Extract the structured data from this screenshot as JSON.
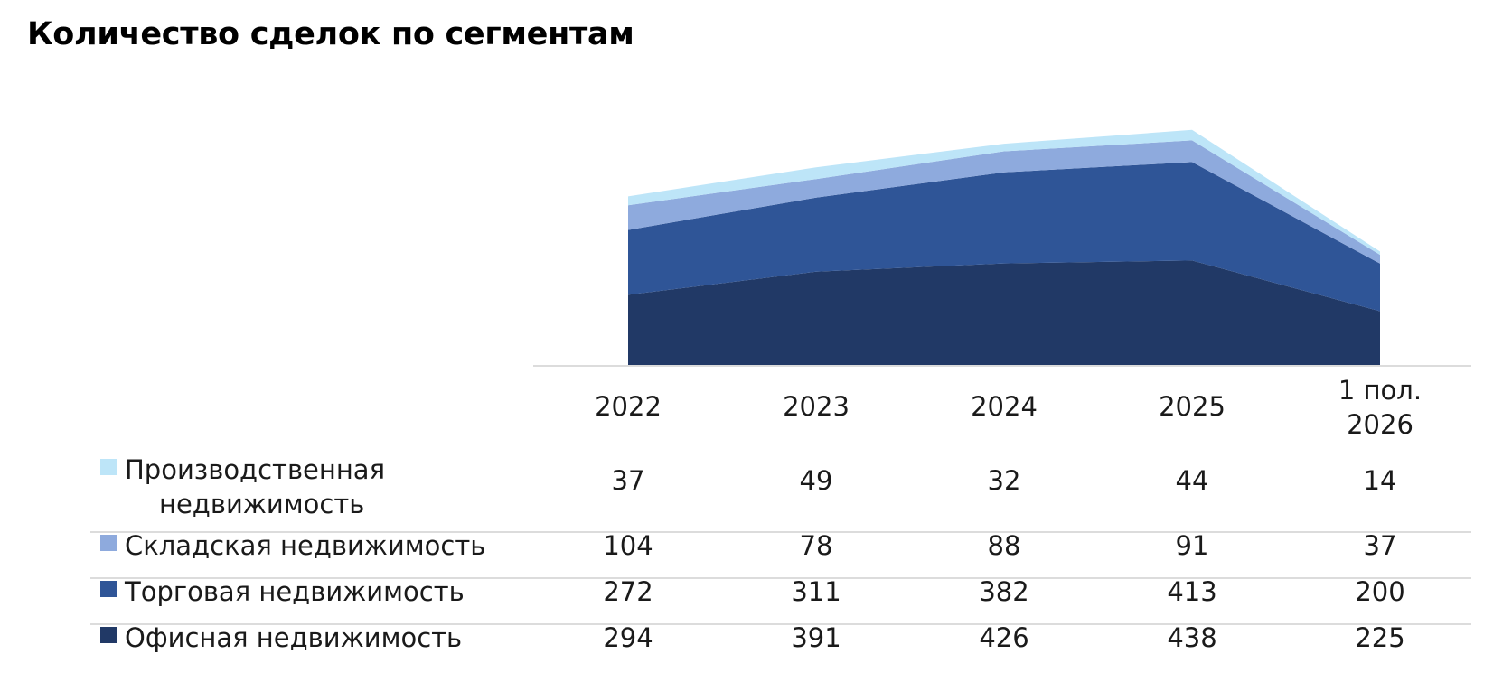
{
  "title": "Количество сделок по сегментам",
  "chart_data": {
    "type": "area",
    "stacked": true,
    "title": "Количество сделок по сегментам",
    "categories": [
      [
        "2022"
      ],
      [
        "2023"
      ],
      [
        "2024"
      ],
      [
        "2025"
      ],
      [
        "1 пол.",
        "2026"
      ]
    ],
    "series": [
      {
        "name": "Производственная недвижимость",
        "name_lines": [
          "Производственная",
          "недвижимость"
        ],
        "color": "#bde5f8",
        "values": [
          37,
          49,
          32,
          44,
          14
        ]
      },
      {
        "name": "Складская недвижимость",
        "name_lines": [
          "Складская недвижимость"
        ],
        "color": "#8eaadd",
        "values": [
          104,
          78,
          88,
          91,
          37
        ]
      },
      {
        "name": "Торговая недвижимость",
        "name_lines": [
          "Торговая недвижимость"
        ],
        "color": "#2f5597",
        "values": [
          272,
          311,
          382,
          413,
          200
        ]
      },
      {
        "name": "Офисная недвижимость",
        "name_lines": [
          "Офисная недвижимость"
        ],
        "color": "#213966",
        "values": [
          294,
          391,
          426,
          438,
          225
        ]
      }
    ],
    "data_table": true,
    "legend": "data-table-left",
    "grid": false
  }
}
